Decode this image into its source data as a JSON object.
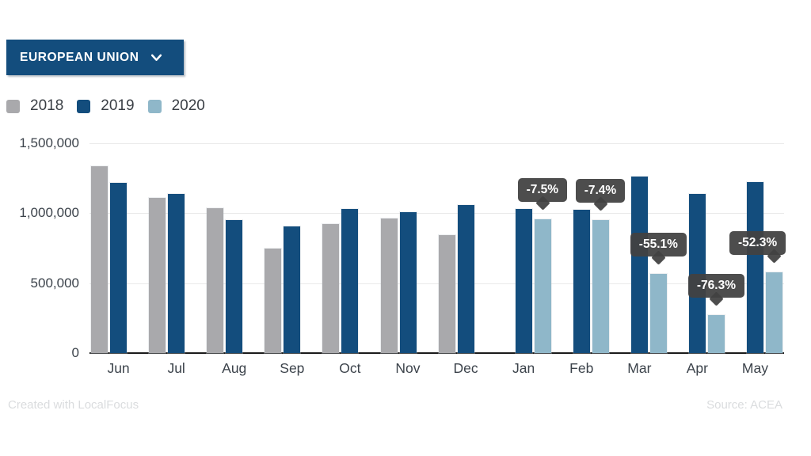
{
  "header": {
    "region_selector": {
      "label": "EUROPEAN UNION"
    }
  },
  "legend": {
    "items": [
      {
        "label": "2018",
        "color": "#a9a9ac"
      },
      {
        "label": "2019",
        "color": "#134d7d"
      },
      {
        "label": "2020",
        "color": "#8fb7c9"
      }
    ]
  },
  "chart_data": {
    "type": "bar",
    "title": "",
    "categories": [
      "Jun",
      "Jul",
      "Aug",
      "Sep",
      "Oct",
      "Nov",
      "Dec",
      "Jan",
      "Feb",
      "Mar",
      "Apr",
      "May"
    ],
    "series": [
      {
        "name": "2018",
        "color": "#a9a9ac",
        "values": [
          1335000,
          1110000,
          1035000,
          750000,
          925000,
          960000,
          845000,
          null,
          null,
          null,
          null,
          null
        ]
      },
      {
        "name": "2019",
        "color": "#134d7d",
        "values": [
          1220000,
          1140000,
          950000,
          905000,
          1030000,
          1010000,
          1060000,
          1030000,
          1025000,
          1260000,
          1140000,
          1225000
        ]
      },
      {
        "name": "2020",
        "color": "#8fb7c9",
        "values": [
          null,
          null,
          null,
          null,
          null,
          null,
          null,
          955000,
          950000,
          565000,
          270000,
          580000
        ]
      }
    ],
    "annotations": [
      {
        "category": "Jan",
        "series": "2020",
        "label": "-7.5%"
      },
      {
        "category": "Feb",
        "series": "2020",
        "label": "-7.4%"
      },
      {
        "category": "Mar",
        "series": "2020",
        "label": "-55.1%"
      },
      {
        "category": "Apr",
        "series": "2020",
        "label": "-76.3%"
      },
      {
        "category": "May",
        "series": "2020",
        "label": "-52.3%"
      }
    ],
    "ylim": [
      0,
      1500000
    ],
    "yticks": [
      {
        "value": 1500000,
        "label": "1,500,000"
      },
      {
        "value": 1000000,
        "label": "1,000,000"
      },
      {
        "value": 500000,
        "label": "500,000"
      },
      {
        "value": 0,
        "label": "0"
      }
    ],
    "grid": true,
    "legend_position": "top-left"
  },
  "footer": {
    "left": "Created with LocalFocus",
    "right": "Source: ACEA"
  },
  "colors": {
    "accent_blue": "#134d7d",
    "bar_2018": "#a9a9ac",
    "bar_2019": "#134d7d",
    "bar_2020": "#8fb7c9",
    "tooltip_bg": "#424242",
    "axis": "#1b1b1b",
    "gridline": "#e9e9e9",
    "tick_text": "#3c434b",
    "footer_text": "#dadcde"
  }
}
